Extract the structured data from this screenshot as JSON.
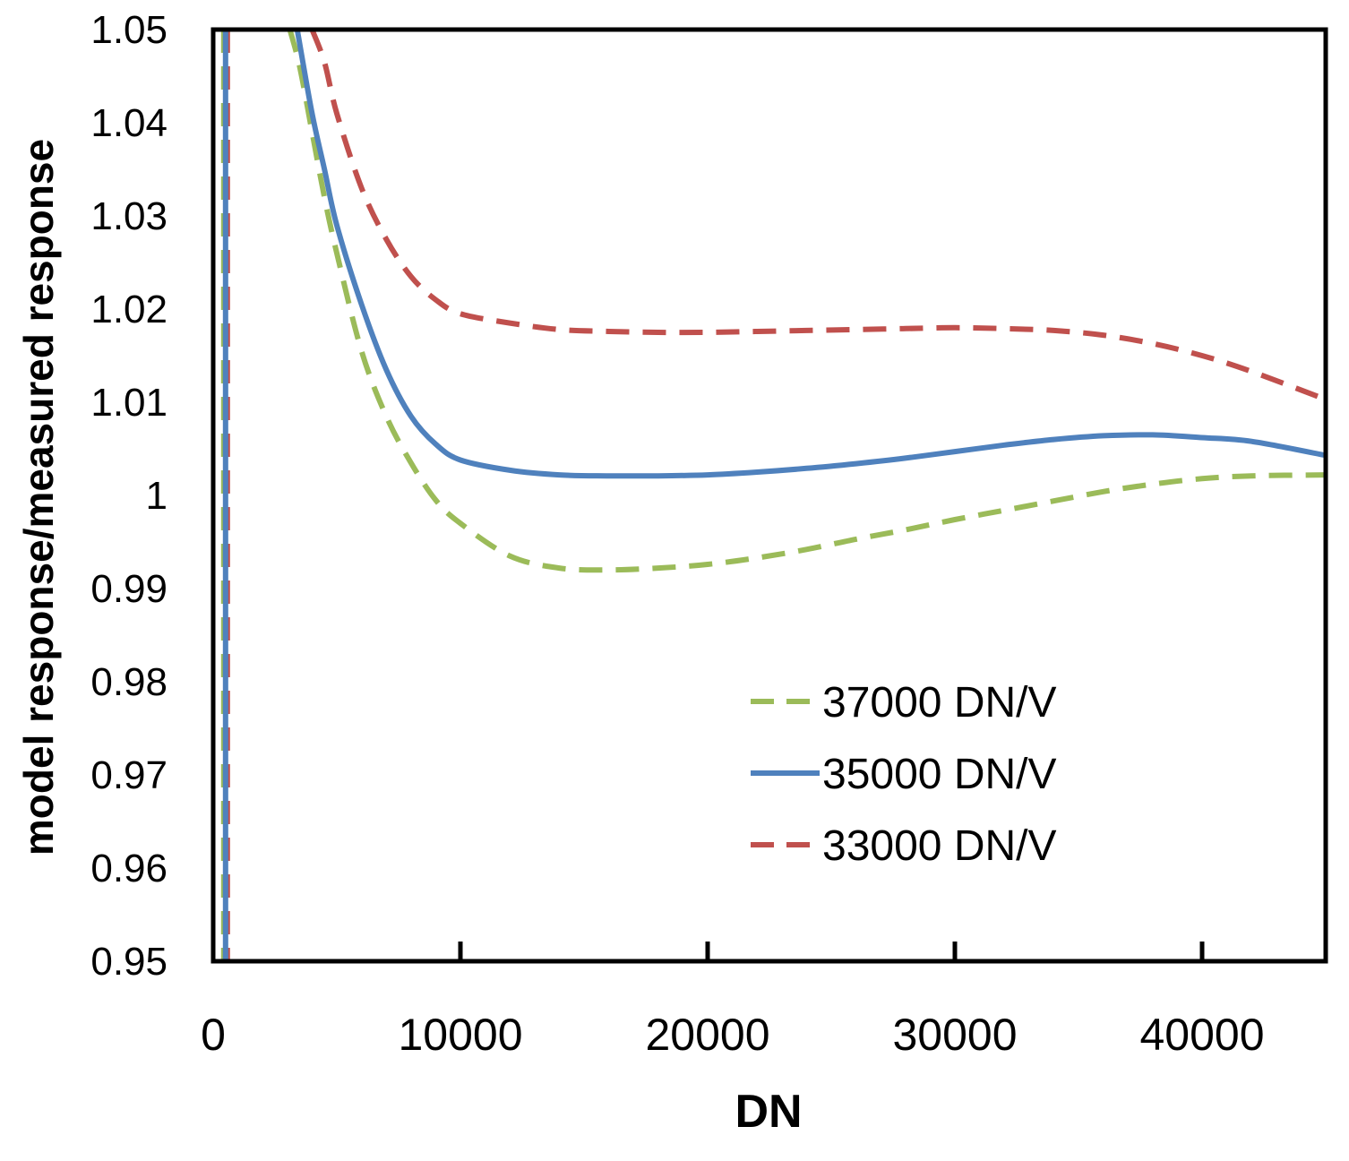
{
  "chart_data": {
    "type": "line",
    "title": "",
    "xlabel": "DN",
    "ylabel": "model response/measured response",
    "xlim": [
      0,
      45000
    ],
    "ylim": [
      0.95,
      1.05
    ],
    "x_ticks": [
      0,
      10000,
      20000,
      30000,
      40000
    ],
    "x_tick_labels": [
      "0",
      "10000",
      "20000",
      "30000",
      "40000"
    ],
    "y_ticks": [
      0.95,
      0.96,
      0.97,
      0.98,
      0.99,
      1.0,
      1.01,
      1.02,
      1.03,
      1.04,
      1.05
    ],
    "y_tick_labels": [
      "0.95",
      "0.96",
      "0.97",
      "0.98",
      "0.99",
      "1",
      "1.01",
      "1.02",
      "1.03",
      "1.04",
      "1.05"
    ],
    "grid": false,
    "legend_position": "lower-right",
    "series": [
      {
        "name": "37000 DN/V",
        "color": "#9BBB59",
        "style": "dashed",
        "vertical_x": 500,
        "x": [
          3100,
          3500,
          4000,
          4500,
          5000,
          6000,
          7000,
          8000,
          9000,
          10000,
          12000,
          14000,
          16000,
          18000,
          20000,
          22000,
          24000,
          26000,
          28000,
          30000,
          32000,
          34000,
          36000,
          38000,
          40000,
          42000,
          45000
        ],
        "values": [
          1.05,
          1.046,
          1.039,
          1.032,
          1.026,
          1.0155,
          1.0085,
          1.0035,
          0.9995,
          0.997,
          0.9935,
          0.9922,
          0.992,
          0.9922,
          0.9926,
          0.9933,
          0.9942,
          0.9953,
          0.9963,
          0.9974,
          0.9984,
          0.9994,
          1.0004,
          1.0012,
          1.0018,
          1.0021,
          1.0022
        ]
      },
      {
        "name": "35000 DN/V",
        "color": "#4F81BD",
        "style": "solid",
        "vertical_x": 500,
        "x": [
          3400,
          4000,
          4500,
          5000,
          6000,
          7000,
          8000,
          9000,
          10000,
          12000,
          14000,
          16000,
          18000,
          20000,
          22000,
          24000,
          26000,
          28000,
          30000,
          32000,
          34000,
          36000,
          38000,
          40000,
          42000,
          45000
        ],
        "values": [
          1.05,
          1.041,
          1.035,
          1.029,
          1.0205,
          1.0135,
          1.0085,
          1.0055,
          1.0038,
          1.0027,
          1.0022,
          1.0021,
          1.0021,
          1.0022,
          1.0025,
          1.0029,
          1.0034,
          1.004,
          1.0047,
          1.0054,
          1.006,
          1.0064,
          1.0065,
          1.0062,
          1.0058,
          1.0043
        ]
      },
      {
        "name": "33000 DN/V",
        "color": "#C0504D",
        "style": "dashed",
        "vertical_x": 500,
        "x": [
          4000,
          4500,
          5000,
          6000,
          7000,
          8000,
          9000,
          10000,
          12000,
          14000,
          16000,
          18000,
          20000,
          22000,
          24000,
          26000,
          28000,
          30000,
          32000,
          34000,
          36000,
          38000,
          40000,
          42000,
          45000
        ],
        "values": [
          1.05,
          1.0465,
          1.041,
          1.033,
          1.0275,
          1.0235,
          1.021,
          1.0195,
          1.0185,
          1.0178,
          1.0176,
          1.0175,
          1.0175,
          1.0176,
          1.0177,
          1.0178,
          1.0179,
          1.018,
          1.0179,
          1.0177,
          1.0172,
          1.0163,
          1.015,
          1.0133,
          1.0103
        ]
      }
    ]
  }
}
